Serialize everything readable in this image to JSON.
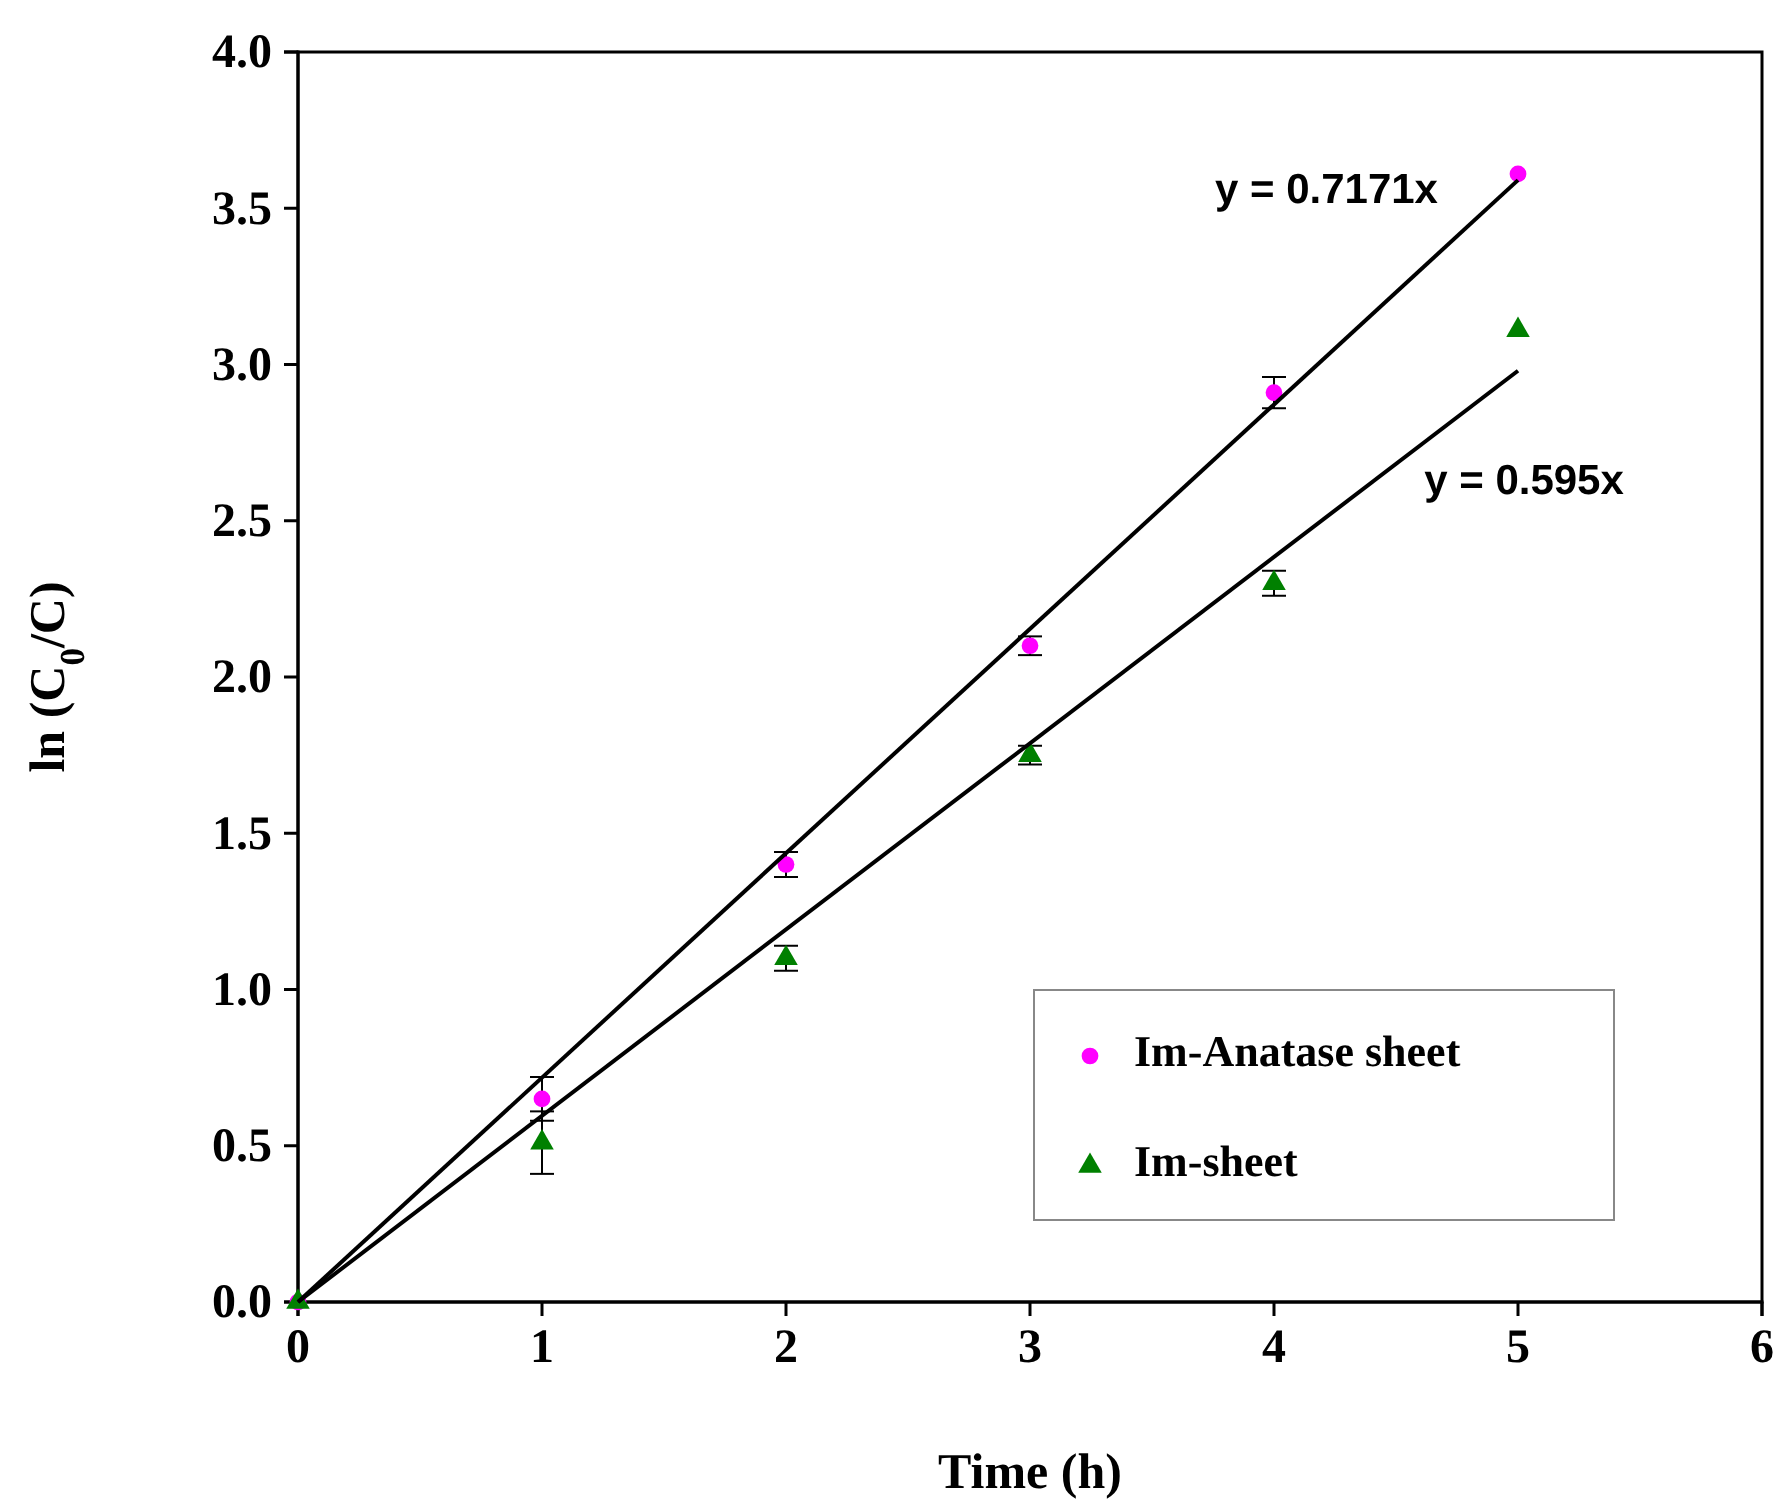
{
  "chart_data": {
    "type": "scatter",
    "xlabel": "Time (h)",
    "ylabel": "ln (C$_{0}$/C)",
    "xlim": [
      0,
      6
    ],
    "xticks": [
      0,
      1,
      2,
      3,
      4,
      5,
      6
    ],
    "ylim": [
      0,
      4
    ],
    "yticks": [
      {
        "value": 0,
        "label": "0.0"
      },
      {
        "value": 0.5,
        "label": "0.5"
      },
      {
        "value": 1,
        "label": "1.0"
      },
      {
        "value": 1.5,
        "label": "1.5"
      },
      {
        "value": 2,
        "label": "2.0"
      },
      {
        "value": 2.5,
        "label": "2.5"
      },
      {
        "value": 3,
        "label": "3.0"
      },
      {
        "value": 3.5,
        "label": "3.5"
      },
      {
        "value": 4,
        "label": "4.0"
      }
    ],
    "grid": false,
    "legend": "bottom right",
    "series": [
      {
        "name": "Im-Anatase sheet",
        "type": "scatter",
        "marker": "circle",
        "color": "#ff00ff",
        "x": [
          0,
          1,
          2,
          3,
          4,
          5
        ],
        "values": [
          0,
          0.65,
          1.4,
          2.1,
          2.91,
          3.61
        ],
        "errors": [
          null,
          0.07,
          0.04,
          0.03,
          0.05,
          null
        ]
      },
      {
        "name": "Im-sheet",
        "type": "scatter",
        "marker": "triangle",
        "color": "#008000",
        "x": [
          0,
          1,
          2,
          3,
          4,
          5
        ],
        "values": [
          0,
          0.51,
          1.1,
          1.75,
          2.3,
          3.11
        ],
        "errors": [
          null,
          0.1,
          0.04,
          0.03,
          0.04,
          null
        ]
      },
      {
        "type": "line",
        "marker": "none",
        "line_style": "solid",
        "color": "#000000",
        "x": [
          0,
          5
        ],
        "values": [
          0,
          3.59
        ]
      },
      {
        "type": "line",
        "marker": "none",
        "line_style": "solid",
        "color": "#000000",
        "x": [
          0,
          5
        ],
        "values": [
          0,
          2.98
        ]
      }
    ],
    "annotations": [
      "y = 0.7171x",
      "y = 0.595x"
    ]
  }
}
